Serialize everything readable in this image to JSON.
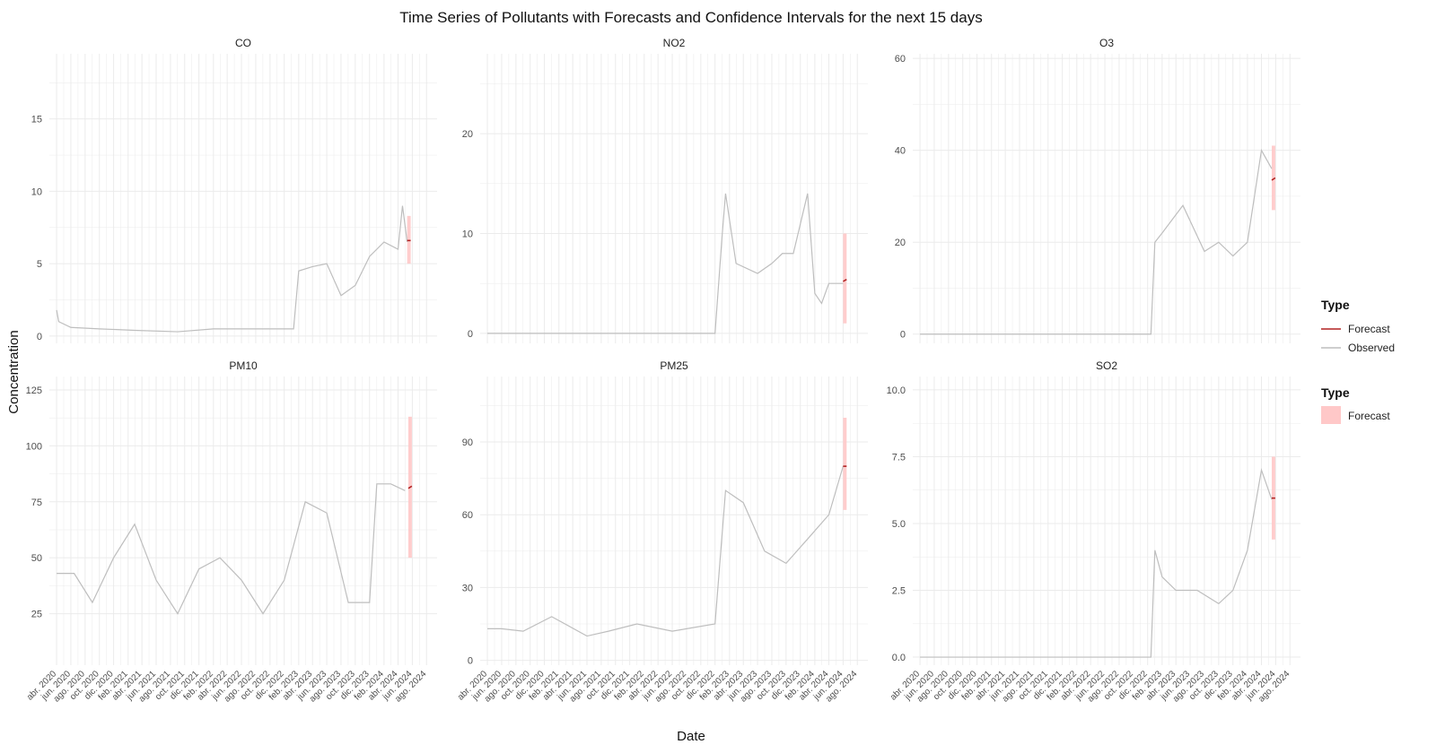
{
  "title": "Time Series of Pollutants with Forecasts and Confidence Intervals for the next 15 days",
  "xlabel": "Date",
  "ylabel": "Concentration",
  "colors": {
    "observed": "#bebebe",
    "forecast": "#b22222",
    "ci": "#ffc8c8",
    "grid": "#ebebeb"
  },
  "date_ticks": [
    "abr. 2020",
    "jun. 2020",
    "ago. 2020",
    "oct. 2020",
    "dic. 2020",
    "feb. 2021",
    "abr. 2021",
    "jun. 2021",
    "ago. 2021",
    "oct. 2021",
    "dic. 2021",
    "feb. 2022",
    "abr. 2022",
    "jun. 2022",
    "ago. 2022",
    "oct. 2022",
    "dic. 2022",
    "feb. 2023",
    "abr. 2023",
    "jun. 2023",
    "ago. 2023",
    "oct. 2023",
    "dic. 2023",
    "feb. 2024",
    "abr. 2024",
    "jun. 2024",
    "ago. 2024"
  ],
  "legend": {
    "line": {
      "title": "Type",
      "items": [
        "Forecast",
        "Observed"
      ]
    },
    "fill": {
      "title": "Type",
      "items": [
        "Forecast"
      ]
    }
  },
  "chart_data": [
    {
      "type": "line",
      "title": "CO",
      "ylim": [
        -0.5,
        19.5
      ],
      "yticks": [
        "0",
        "5",
        "10",
        "15"
      ],
      "observed": {
        "x": [
          "2020-04-01",
          "2020-04-10",
          "2020-06-01",
          "2020-10-01",
          "2021-03-01",
          "2021-09-01",
          "2022-02-01",
          "2022-06-01",
          "2022-12-01",
          "2023-01-10",
          "2023-02-01",
          "2023-04-01",
          "2023-06-01",
          "2023-08-01",
          "2023-10-01",
          "2023-12-01",
          "2024-02-01",
          "2024-04-01",
          "2024-04-20",
          "2024-05-10"
        ],
        "y": [
          1.8,
          1.0,
          0.6,
          0.5,
          0.4,
          0.3,
          0.5,
          0.5,
          0.5,
          0.5,
          4.5,
          4.8,
          5.0,
          2.8,
          3.5,
          5.5,
          6.5,
          6.0,
          9.0,
          6.5
        ]
      },
      "forecast": {
        "x": [
          "2024-05-10",
          "2024-05-25"
        ],
        "y": [
          6.6,
          6.6
        ],
        "lower": [
          5.0,
          5.0
        ],
        "upper": [
          8.3,
          8.3
        ]
      }
    },
    {
      "type": "line",
      "title": "NO2",
      "ylim": [
        -1,
        28
      ],
      "yticks": [
        "0",
        "10",
        "20"
      ],
      "observed": {
        "x": [
          "2020-04-01",
          "2022-12-01",
          "2023-01-01",
          "2023-01-15",
          "2023-03-01",
          "2023-06-01",
          "2023-08-01",
          "2023-09-15",
          "2023-11-01",
          "2024-01-01",
          "2024-02-01",
          "2024-03-01",
          "2024-04-01",
          "2024-06-01"
        ],
        "y": [
          0,
          0,
          10,
          14,
          7,
          6,
          7,
          8,
          8,
          14,
          4,
          3,
          5,
          5
        ]
      },
      "forecast": {
        "x": [
          "2024-06-01",
          "2024-06-16"
        ],
        "y": [
          5.2,
          5.4
        ],
        "lower": [
          1.0,
          1.0
        ],
        "upper": [
          10.0,
          10.0
        ]
      }
    },
    {
      "type": "line",
      "title": "O3",
      "ylim": [
        -2,
        61
      ],
      "yticks": [
        "0",
        "20",
        "40",
        "60"
      ],
      "observed": {
        "x": [
          "2020-04-01",
          "2022-12-15",
          "2023-01-01",
          "2023-02-01",
          "2023-05-01",
          "2023-08-01",
          "2023-10-01",
          "2023-12-01",
          "2024-02-01",
          "2024-04-01",
          "2024-05-15"
        ],
        "y": [
          0,
          0,
          20,
          22,
          28,
          18,
          20,
          17,
          20,
          40,
          36
        ]
      },
      "forecast": {
        "x": [
          "2024-05-15",
          "2024-05-30"
        ],
        "y": [
          33.5,
          34.0
        ],
        "lower": [
          27.0,
          27.0
        ],
        "upper": [
          41.0,
          41.0
        ]
      }
    },
    {
      "type": "line",
      "title": "PM10",
      "ylim": [
        2,
        131
      ],
      "yticks": [
        "25",
        "50",
        "75",
        "100",
        "125"
      ],
      "observed": {
        "x": [
          "2020-04-01",
          "2020-06-15",
          "2020-09-01",
          "2020-12-01",
          "2021-03-01",
          "2021-06-01",
          "2021-09-01",
          "2021-12-01",
          "2022-03-01",
          "2022-06-01",
          "2022-09-01",
          "2022-12-01",
          "2023-03-01",
          "2023-06-01",
          "2023-09-01",
          "2023-12-01",
          "2024-01-01",
          "2024-03-01",
          "2024-05-01"
        ],
        "y": [
          43,
          43,
          30,
          50,
          65,
          40,
          25,
          45,
          50,
          40,
          25,
          40,
          75,
          70,
          30,
          30,
          83,
          83,
          80
        ]
      },
      "forecast": {
        "x": [
          "2024-05-15",
          "2024-05-30"
        ],
        "y": [
          81,
          82
        ],
        "lower": [
          50,
          50
        ],
        "upper": [
          113,
          113
        ]
      }
    },
    {
      "type": "line",
      "title": "PM25",
      "ylim": [
        -2,
        117
      ],
      "yticks": [
        "0",
        "30",
        "60",
        "90"
      ],
      "observed": {
        "x": [
          "2020-04-01",
          "2020-06-01",
          "2020-09-01",
          "2021-01-01",
          "2021-06-01",
          "2021-09-01",
          "2022-01-01",
          "2022-06-01",
          "2022-12-01",
          "2023-01-15",
          "2023-04-01",
          "2023-07-01",
          "2023-10-01",
          "2024-01-01",
          "2024-04-01",
          "2024-06-01"
        ],
        "y": [
          13,
          13,
          12,
          18,
          10,
          12,
          15,
          12,
          15,
          70,
          65,
          45,
          40,
          50,
          60,
          80
        ]
      },
      "forecast": {
        "x": [
          "2024-06-01",
          "2024-06-16"
        ],
        "y": [
          80,
          80
        ],
        "lower": [
          62,
          62
        ],
        "upper": [
          100,
          100
        ]
      }
    },
    {
      "type": "line",
      "title": "SO2",
      "ylim": [
        -0.3,
        10.5
      ],
      "yticks": [
        "0.0",
        "2.5",
        "5.0",
        "7.5",
        "10.0"
      ],
      "observed": {
        "x": [
          "2020-04-01",
          "2022-12-15",
          "2023-01-01",
          "2023-02-01",
          "2023-04-01",
          "2023-07-01",
          "2023-10-01",
          "2023-12-01",
          "2024-02-01",
          "2024-04-01",
          "2024-05-15"
        ],
        "y": [
          0,
          0,
          4,
          3,
          2.5,
          2.5,
          2,
          2.5,
          4,
          7,
          5.9
        ]
      },
      "forecast": {
        "x": [
          "2024-05-15",
          "2024-05-30"
        ],
        "y": [
          5.95,
          5.95
        ],
        "lower": [
          4.4,
          4.4
        ],
        "upper": [
          7.5,
          7.5
        ]
      }
    }
  ]
}
